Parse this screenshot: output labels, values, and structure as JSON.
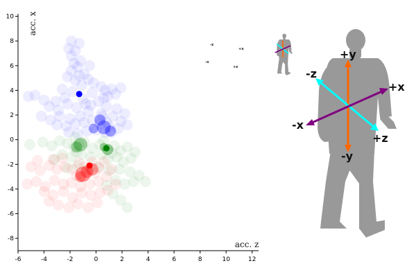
{
  "chart_data": {
    "type": "scatter",
    "xlabel": "acc. z",
    "ylabel": "acc. x",
    "xlim": [
      -6,
      12.5
    ],
    "ylim": [
      -9,
      10.2
    ],
    "xticks": [
      "-6",
      "-4",
      "-2",
      "0",
      "2",
      "4",
      "6",
      "8",
      "10",
      "12"
    ],
    "yticks": [
      "10",
      "8",
      "6",
      "4",
      "2",
      "0",
      "-2",
      "-4",
      "-6",
      "-8"
    ],
    "grid": false,
    "series": [
      {
        "color": "#0000ff",
        "highlight": [
          -1.3,
          3.7
        ],
        "points": [
          [
            -2.1,
            7.4
          ],
          [
            -1.9,
            6.8
          ],
          [
            -1.6,
            7.2
          ],
          [
            -1.3,
            7.8
          ],
          [
            -1.7,
            6.2
          ],
          [
            -1.4,
            5.9
          ],
          [
            -1.9,
            5.6
          ],
          [
            -1.2,
            6.4
          ],
          [
            -2.2,
            5.1
          ],
          [
            -0.9,
            5.3
          ],
          [
            -1.6,
            4.8
          ],
          [
            -1.1,
            4.4
          ],
          [
            -0.6,
            4.9
          ],
          [
            -0.2,
            4.6
          ],
          [
            0.4,
            4.3
          ],
          [
            0.7,
            4.0
          ],
          [
            1.2,
            4.1
          ],
          [
            1.9,
            4.2
          ],
          [
            1.5,
            3.7
          ],
          [
            0.9,
            3.5
          ],
          [
            -0.3,
            3.8
          ],
          [
            -1.8,
            3.9
          ],
          [
            -2.4,
            3.4
          ],
          [
            -3.1,
            3.1
          ],
          [
            -4.0,
            3.2
          ],
          [
            -4.7,
            3.6
          ],
          [
            -5.2,
            3.5
          ],
          [
            -3.6,
            2.7
          ],
          [
            -2.9,
            2.4
          ],
          [
            -2.2,
            2.9
          ],
          [
            -1.5,
            2.6
          ],
          [
            -0.8,
            2.9
          ],
          [
            0.2,
            3.1
          ],
          [
            0.8,
            2.7
          ],
          [
            1.6,
            2.5
          ],
          [
            2.2,
            2.1
          ],
          [
            1.9,
            1.5
          ],
          [
            1.3,
            1.9
          ],
          [
            0.4,
            2.1
          ],
          [
            -0.6,
            2.3
          ],
          [
            -1.2,
            1.9
          ],
          [
            -2.0,
            1.7
          ],
          [
            -2.8,
            1.9
          ],
          [
            -3.5,
            1.6
          ],
          [
            -4.2,
            1.9
          ],
          [
            -3.0,
            1.2
          ],
          [
            -2.3,
            1.1
          ],
          [
            -1.6,
            1.3
          ],
          [
            -0.9,
            1.4
          ],
          [
            -0.3,
            1.6
          ],
          [
            0.3,
            1.3
          ],
          [
            1.0,
            1.1
          ],
          [
            1.7,
            0.9
          ],
          [
            2.4,
            1.2
          ],
          [
            0.7,
            0.6
          ],
          [
            0.0,
            0.8
          ],
          [
            -0.7,
            0.7
          ],
          [
            -1.4,
            0.5
          ],
          [
            -2.1,
            0.6
          ],
          [
            0.5,
            1.9
          ],
          [
            0.8,
            1.4
          ],
          [
            1.2,
            0.6
          ],
          [
            -0.4,
            2.8
          ],
          [
            0.6,
            3.4
          ],
          [
            -1.0,
            3.3
          ],
          [
            -2.6,
            4.1
          ],
          [
            -1.3,
            5.2
          ],
          [
            -0.5,
            6.0
          ],
          [
            -1.9,
            8.0
          ]
        ],
        "clusters": [
          [
            0.6,
            1.0,
            10
          ],
          [
            0.3,
            1.6,
            8
          ],
          [
            1.1,
            0.7,
            8
          ],
          [
            -0.2,
            0.9,
            7
          ]
        ]
      },
      {
        "color": "#008000",
        "highlight": [
          0.8,
          -0.7
        ],
        "points": [
          [
            -1.3,
            -0.4
          ],
          [
            -1.7,
            -0.6
          ],
          [
            -0.9,
            -0.2
          ],
          [
            -1.6,
            0.2
          ],
          [
            -2.2,
            -0.3
          ],
          [
            -2.8,
            -0.1
          ],
          [
            -3.4,
            -0.5
          ],
          [
            -4.1,
            -0.2
          ],
          [
            -5.1,
            -0.4
          ],
          [
            -0.3,
            -0.7
          ],
          [
            0.3,
            -0.4
          ],
          [
            0.9,
            -0.8
          ],
          [
            1.4,
            -0.5
          ],
          [
            1.9,
            -0.9
          ],
          [
            2.4,
            -0.6
          ],
          [
            3.0,
            -1.0
          ],
          [
            2.7,
            -1.5
          ],
          [
            2.1,
            -1.8
          ],
          [
            1.6,
            -1.4
          ],
          [
            0.9,
            -1.6
          ],
          [
            0.4,
            -1.2
          ],
          [
            -0.4,
            -1.4
          ],
          [
            -1.1,
            -1.2
          ],
          [
            -1.9,
            -1.4
          ],
          [
            -2.6,
            -1.2
          ],
          [
            -3.2,
            -1.6
          ],
          [
            -2.2,
            -2.3
          ],
          [
            -1.4,
            -2.1
          ],
          [
            -0.6,
            -2.4
          ],
          [
            0.2,
            -2.2
          ],
          [
            1.0,
            -2.5
          ],
          [
            1.8,
            -2.4
          ],
          [
            2.6,
            -2.6
          ],
          [
            3.3,
            -2.9
          ],
          [
            2.9,
            -3.4
          ],
          [
            2.2,
            -3.6
          ],
          [
            1.5,
            -3.3
          ],
          [
            0.8,
            -3.7
          ],
          [
            1.3,
            -4.4
          ],
          [
            1.9,
            -4.9
          ],
          [
            2.4,
            -5.5
          ],
          [
            3.8,
            -3.4
          ],
          [
            0.6,
            -0.1
          ],
          [
            -1.5,
            -1.0
          ],
          [
            1.2,
            -1.1
          ]
        ],
        "clusters": [
          [
            -1.2,
            -0.4,
            10
          ],
          [
            -1.5,
            -0.6,
            8
          ],
          [
            0.9,
            -0.8,
            8
          ],
          [
            0.6,
            -0.6,
            6
          ]
        ]
      },
      {
        "color": "#ff0000",
        "highlight": [
          -0.5,
          -2.1
        ],
        "points": [
          [
            -1.5,
            -2.9
          ],
          [
            -1.0,
            -3.0
          ],
          [
            -0.6,
            -2.5
          ],
          [
            -0.1,
            -2.7
          ],
          [
            0.2,
            -2.3
          ],
          [
            -1.8,
            -2.4
          ],
          [
            -2.4,
            -2.2
          ],
          [
            -3.0,
            -2.4
          ],
          [
            -3.6,
            -2.1
          ],
          [
            -4.3,
            -2.5
          ],
          [
            -5.0,
            -2.2
          ],
          [
            -5.3,
            -3.6
          ],
          [
            -4.6,
            -3.4
          ],
          [
            -3.9,
            -3.8
          ],
          [
            -3.2,
            -3.3
          ],
          [
            -2.5,
            -3.6
          ],
          [
            -1.9,
            -3.5
          ],
          [
            -1.2,
            -3.8
          ],
          [
            -0.5,
            -3.6
          ],
          [
            0.2,
            -3.4
          ],
          [
            0.8,
            -3.0
          ],
          [
            1.2,
            -2.4
          ],
          [
            1.5,
            -3.6
          ],
          [
            0.9,
            -4.1
          ],
          [
            0.3,
            -4.3
          ],
          [
            -0.4,
            -4.5
          ],
          [
            -1.1,
            -4.3
          ],
          [
            -1.8,
            -4.7
          ],
          [
            -2.5,
            -4.2
          ],
          [
            -3.3,
            -4.5
          ],
          [
            -4.0,
            -4.2
          ],
          [
            -3.6,
            -5.0
          ],
          [
            -2.9,
            -5.3
          ],
          [
            -2.1,
            -5.5
          ],
          [
            -1.4,
            -5.2
          ],
          [
            -0.6,
            -5.5
          ],
          [
            0.1,
            -5.1
          ],
          [
            -4.5,
            -1.7
          ],
          [
            -3.3,
            -1.6
          ],
          [
            -2.6,
            -1.5
          ],
          [
            0.6,
            -1.8
          ],
          [
            -1.3,
            -1.9
          ],
          [
            -0.3,
            -1.8
          ],
          [
            -0.9,
            -2.2
          ]
        ],
        "clusters": [
          [
            -1.0,
            -2.8,
            11
          ],
          [
            -0.3,
            -2.4,
            9
          ],
          [
            -0.7,
            -2.6,
            9
          ],
          [
            -1.2,
            -3.0,
            8
          ]
        ]
      }
    ]
  },
  "diagram": {
    "figure_color": "#999999",
    "axes": [
      {
        "name": "y",
        "color": "#ff6600",
        "plus_label": "+y",
        "minus_label": "-y"
      },
      {
        "name": "z",
        "color": "#00ffff",
        "plus_label": "+z",
        "minus_label": "-z"
      },
      {
        "name": "x",
        "color": "#800080",
        "plus_label": "+x",
        "minus_label": "-x"
      }
    ]
  }
}
